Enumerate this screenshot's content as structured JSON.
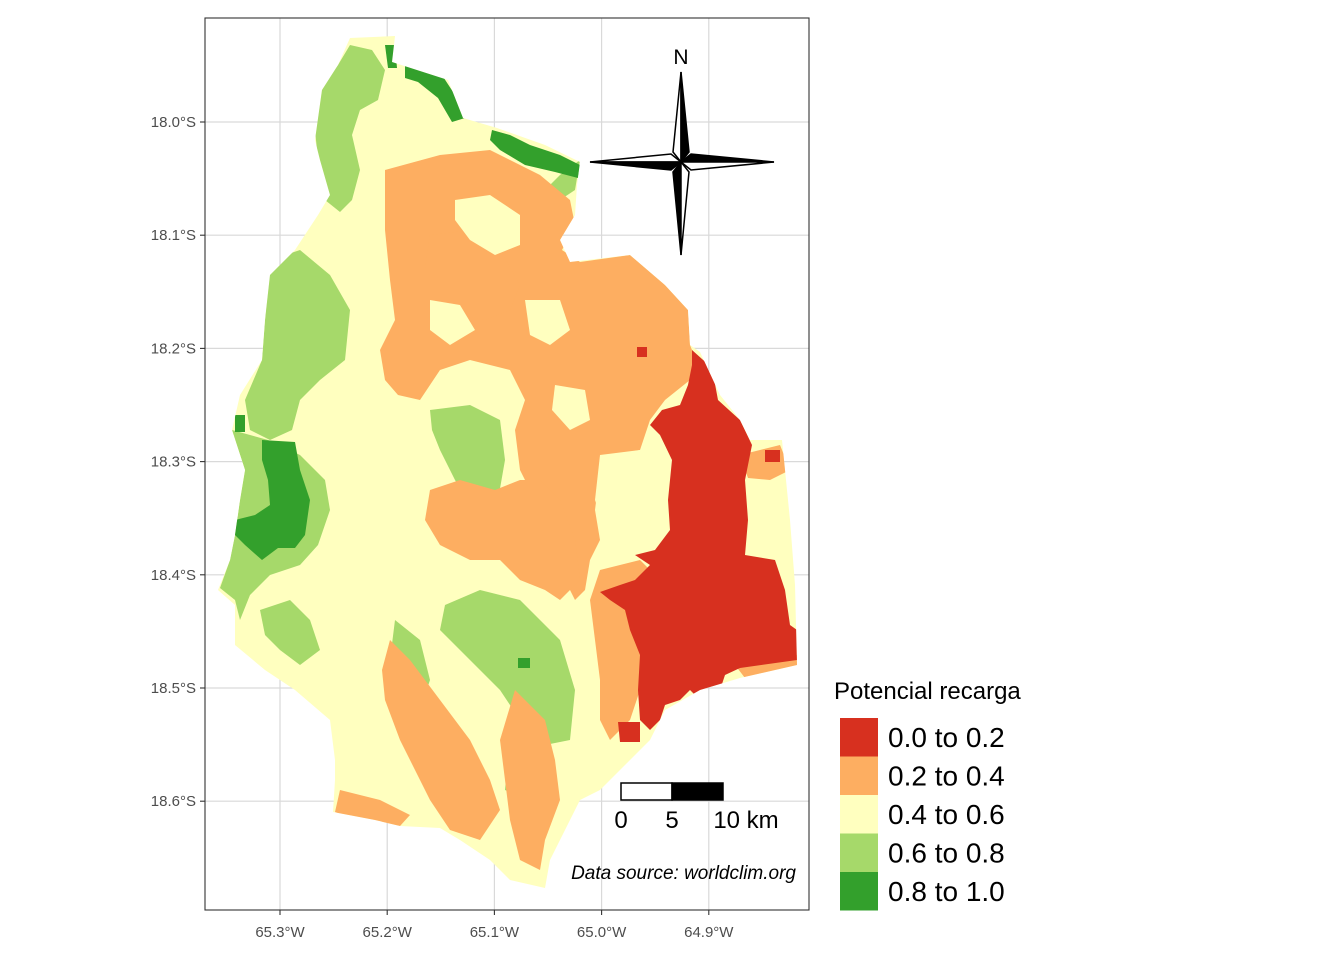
{
  "map": {
    "lat_ticks": [
      "18.0°S",
      "18.1°S",
      "18.2°S",
      "18.3°S",
      "18.4°S",
      "18.5°S",
      "18.6°S"
    ],
    "lon_ticks": [
      "65.3°W",
      "65.2°W",
      "65.1°W",
      "65.0°W",
      "64.9°W"
    ],
    "north_arrow_label": "N",
    "scale_bar": {
      "labels": [
        "0",
        "5",
        "10 km"
      ]
    },
    "caption": "Data source: worldclim.org",
    "grid": true
  },
  "legend": {
    "title": "Potencial recarga",
    "items": [
      {
        "label": "0.0 to 0.2",
        "color": "#d7301f"
      },
      {
        "label": "0.2 to 0.4",
        "color": "#fdae61"
      },
      {
        "label": "0.4 to 0.6",
        "color": "#ffffbf"
      },
      {
        "label": "0.6 to 0.8",
        "color": "#a6d96a"
      },
      {
        "label": "0.8 to 1.0",
        "color": "#33a02c"
      }
    ]
  }
}
